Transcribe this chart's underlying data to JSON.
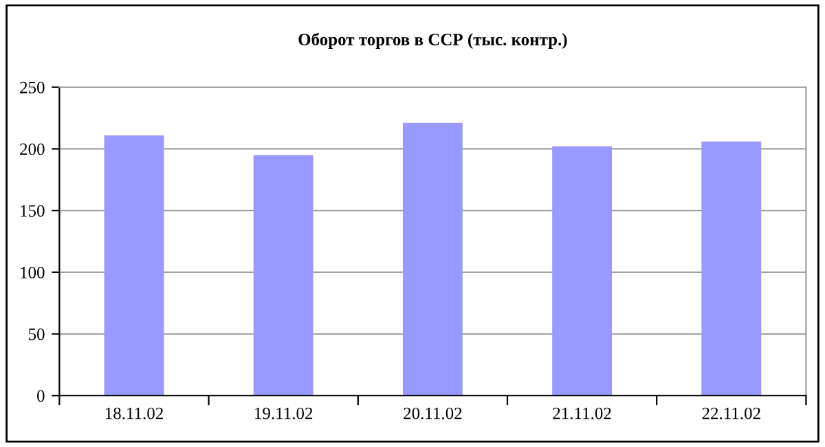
{
  "chart_data": {
    "type": "bar",
    "title": "Оборот торгов в ССР (тыс. контр.)",
    "categories": [
      "18.11.02",
      "19.11.02",
      "20.11.02",
      "21.11.02",
      "22.11.02"
    ],
    "values": [
      211,
      195,
      221,
      202,
      206
    ],
    "color": "#9999ff",
    "ylim": [
      0,
      250
    ],
    "yticks": [
      0,
      50,
      100,
      150,
      200,
      250
    ],
    "grid": "y",
    "legend": false
  }
}
